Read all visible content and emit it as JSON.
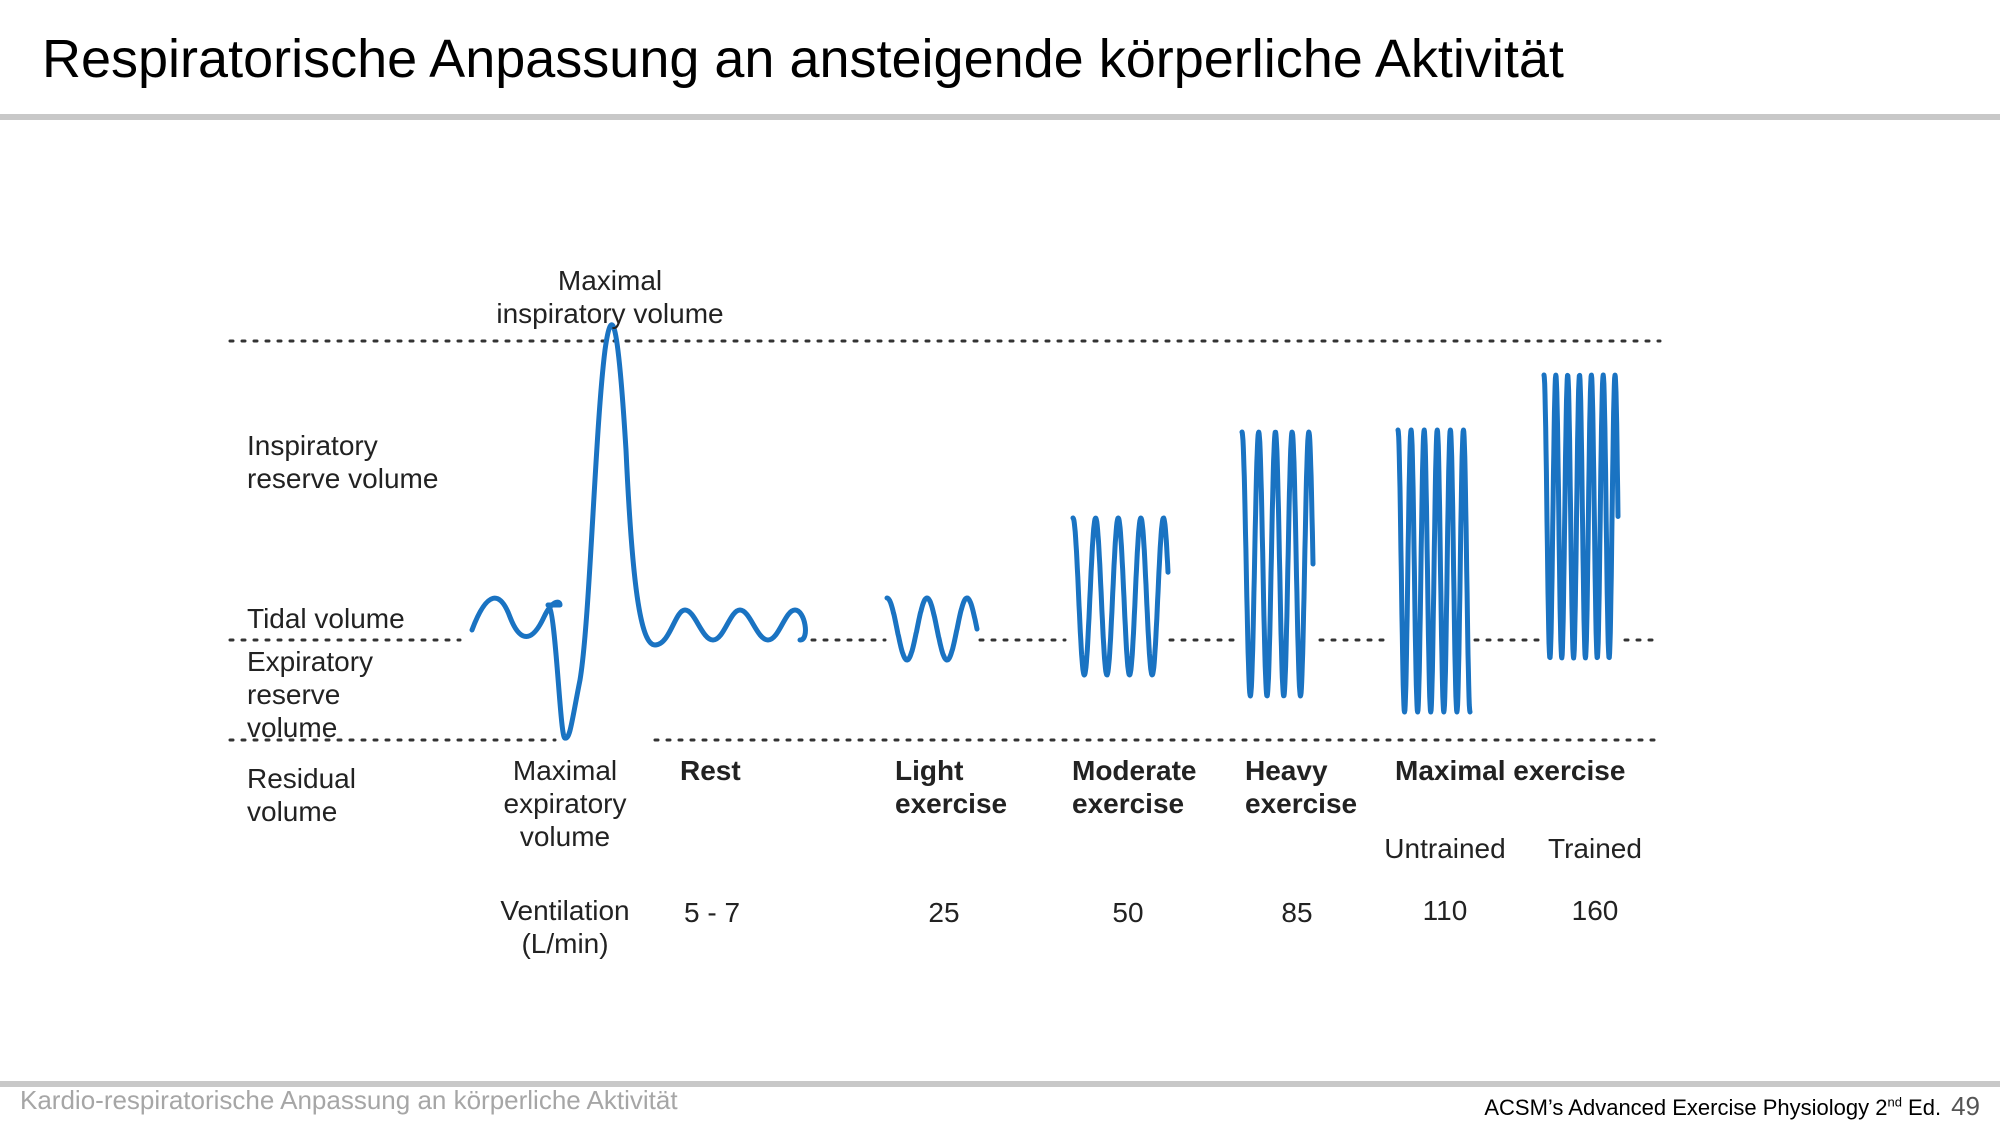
{
  "slide": {
    "title": "Respiratorische Anpassung an ansteigende körperliche Aktivität",
    "footer_left": "Kardio-respiratorische Anpassung an körperliche Aktivität",
    "source_prefix": "ACSM’s Advanced Exercise Physiology 2",
    "source_sup": "nd",
    "source_suffix": " Ed.",
    "page_number": "49"
  },
  "diagram": {
    "trace_color": "#1a73c2",
    "label_max_insp_1": "Maximal",
    "label_max_insp_2": "inspiratory volume",
    "label_irv_1": "Inspiratory",
    "label_irv_2": "reserve volume",
    "label_tidal": "Tidal volume",
    "label_erv_1": "Expiratory",
    "label_erv_2": "reserve",
    "label_erv_3": "volume",
    "label_residual_1": "Residual",
    "label_residual_2": "volume",
    "label_max_exp_1": "Maximal",
    "label_max_exp_2": "expiratory",
    "label_max_exp_3": "volume",
    "ventilation_label_1": "Ventilation",
    "ventilation_label_2": "(L/min)",
    "stages": [
      {
        "line1": "Rest",
        "line2": "",
        "ventilation": "5 - 7"
      },
      {
        "line1": "Light",
        "line2": "exercise",
        "ventilation": "25"
      },
      {
        "line1": "Moderate",
        "line2": "exercise",
        "ventilation": "50"
      },
      {
        "line1": "Heavy",
        "line2": "exercise",
        "ventilation": "85"
      },
      {
        "line1": "Maximal exercise",
        "line2": "",
        "ventilation": ""
      }
    ],
    "max_sub": [
      {
        "label": "Untrained",
        "ventilation": "110"
      },
      {
        "label": "Trained",
        "ventilation": "160"
      }
    ]
  }
}
